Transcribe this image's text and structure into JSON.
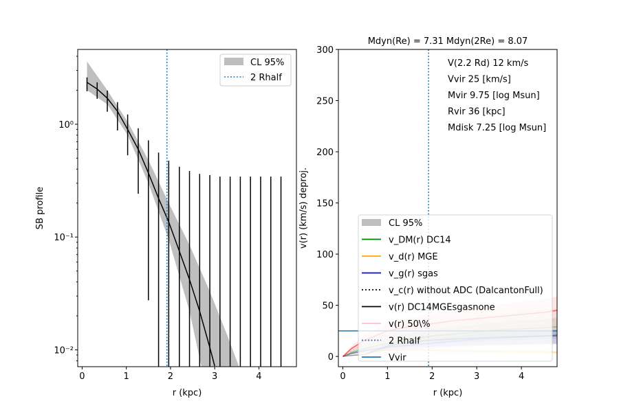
{
  "chart_data": [
    {
      "type": "line",
      "title": "",
      "xlabel": "r (kpc)",
      "ylabel": "SB profile",
      "xlim": [
        -0.1,
        4.85
      ],
      "ylim": [
        0.0071,
        4.6
      ],
      "yscale": "log",
      "xticks": [
        0,
        1,
        2,
        3,
        4
      ],
      "xtick_labels": [
        "0",
        "1",
        "2",
        "3",
        "4"
      ],
      "yticks": [
        0.01,
        0.1,
        1
      ],
      "ytick_labels": [
        "10⁻²",
        "10⁻¹",
        "10⁰"
      ],
      "legend": {
        "placement": "top-right",
        "entries": [
          "CL 95%",
          "2 Rhalf"
        ]
      },
      "rhalf2": 1.92,
      "errorbars": {
        "x": [
          0.11,
          0.34,
          0.57,
          0.8,
          1.03,
          1.27,
          1.5,
          1.73,
          1.96,
          2.2,
          2.43,
          2.66,
          2.89,
          3.12,
          3.35,
          3.58,
          3.81,
          4.04,
          4.27,
          4.5
        ],
        "upper": [
          2.6,
          2.35,
          1.99,
          1.57,
          1.22,
          0.92,
          0.72,
          0.56,
          0.475,
          0.42,
          0.385,
          0.363,
          0.354,
          0.344,
          0.344,
          0.344,
          0.344,
          0.344,
          0.344,
          0.344
        ],
        "lower": [
          1.96,
          1.68,
          1.29,
          0.88,
          0.53,
          0.242,
          0.0275,
          0.001,
          0.001,
          0.001,
          0.001,
          0.001,
          0.001,
          0.001,
          0.001,
          0.001,
          0.001,
          0.001,
          0.001,
          0.001
        ]
      },
      "model": {
        "x": [
          0.11,
          0.34,
          0.57,
          0.8,
          1.03,
          1.27,
          1.5,
          1.73,
          1.96,
          2.2,
          2.43,
          2.66,
          2.89,
          3.0
        ],
        "y": [
          2.35,
          2.05,
          1.7,
          1.3,
          0.9,
          0.6,
          0.37,
          0.22,
          0.136,
          0.075,
          0.042,
          0.022,
          0.0105,
          0.0072
        ]
      },
      "band_upper": {
        "x": [
          0.11,
          0.57,
          1.03,
          1.5,
          1.96,
          2.43,
          2.89,
          3.3,
          3.55
        ],
        "y": [
          3.6,
          2.0,
          1.05,
          0.48,
          0.2,
          0.085,
          0.033,
          0.013,
          0.007
        ]
      },
      "band_lower": {
        "x": [
          0.11,
          0.57,
          1.03,
          1.5,
          1.96,
          2.43,
          2.7
        ],
        "y": [
          2.0,
          1.5,
          0.8,
          0.3,
          0.095,
          0.022,
          0.007
        ]
      }
    },
    {
      "type": "line",
      "title": "Mdyn(Re) = 7.31  Mdyn(2Re) = 8.07",
      "xlabel": "r (kpc)",
      "ylabel": "v(r) (km/s) deproj.",
      "xlim": [
        -0.1,
        4.8
      ],
      "ylim": [
        -10,
        300
      ],
      "xticks": [
        0,
        1,
        2,
        3,
        4
      ],
      "xtick_labels": [
        "0",
        "1",
        "2",
        "3",
        "4"
      ],
      "yticks": [
        0,
        50,
        100,
        150,
        200,
        250,
        300
      ],
      "ytick_labels": [
        "0",
        "50",
        "100",
        "150",
        "200",
        "250",
        "300"
      ],
      "rhalf2": 1.92,
      "vvir": 25,
      "annotations": [
        "V(2.2 Rd) 12 km/s",
        "Vvir 25 [km/s]",
        "Mvir 9.75 [log Msun]",
        "Rvir 36 [kpc]",
        "Mdisk 7.25 [log Msun]"
      ],
      "legend": {
        "placement": "lower-center",
        "entries": [
          "CL 95%",
          "v_DM(r) DC14",
          "v_d(r) MGE",
          "v_g(r) sgas",
          "v_c(r) without ADC (DalcantonFull)",
          "v(r) DC14MGEsgasnone",
          "v(r) 50\\%",
          "2 Rhalf",
          "Vvir"
        ]
      },
      "x": [
        0,
        0.2,
        0.5,
        1,
        1.5,
        2,
        2.5,
        3,
        3.5,
        4,
        4.5,
        4.8
      ],
      "series": [
        {
          "name": "v_DM(r) DC14",
          "color": "#008000",
          "values": [
            0,
            4,
            8,
            13,
            17,
            20,
            22,
            24,
            26,
            27,
            28,
            29
          ]
        },
        {
          "name": "v_d(r) MGE",
          "color": "#ffa500",
          "values": [
            0,
            3,
            5,
            6,
            6,
            6,
            5.5,
            5,
            5,
            4.5,
            4.5,
            4
          ]
        },
        {
          "name": "v_g(r) sgas",
          "color": "#0000ff",
          "values": [
            0,
            3,
            6,
            9,
            11,
            13,
            15,
            17,
            18,
            19,
            20,
            21
          ]
        },
        {
          "name": "v_c(r) without ADC (DalcantonFull)",
          "color": "#999999",
          "values": [
            0,
            6,
            12,
            18,
            22,
            26,
            28,
            30,
            32,
            34,
            35,
            36
          ]
        },
        {
          "name": "v(r) DC14MGEsgasnone",
          "color": "#000000",
          "values": [
            0,
            1,
            2,
            10,
            14,
            16,
            17,
            18,
            19,
            19.5,
            20,
            20
          ]
        },
        {
          "name": "v(r) 50\\%",
          "color": "#ff0000",
          "values": [
            0,
            8,
            16,
            25,
            29,
            32,
            35,
            37,
            39,
            41,
            43,
            45
          ]
        }
      ]
    }
  ]
}
